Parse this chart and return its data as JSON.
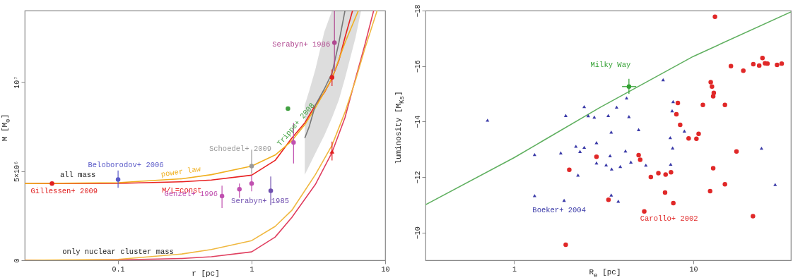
{
  "chart_data": [
    {
      "type": "line",
      "xlabel": "r [pc]",
      "ylabel": "M [M$_{⊙}$]",
      "log": "x",
      "xlim": [
        0.02,
        10
      ],
      "xticks": [
        0.1,
        1,
        10
      ],
      "ylim": [
        0,
        14000000
      ],
      "yticks": [
        0,
        {
          "value": 5000000,
          "label": "5×10⁶"
        },
        {
          "value": 10000000,
          "label": "10⁷"
        }
      ],
      "annotations": [
        {
          "text": "all mass",
          "x": 0.05,
          "y": 4300000
        },
        {
          "text": "only nuclear cluster mass",
          "x": 0.1,
          "y": 0
        }
      ],
      "series": [
        {
          "name": "M/L=const",
          "color": "#e82020",
          "x": [
            0.02,
            0.1,
            0.3,
            0.5,
            1,
            1.5,
            2,
            2.5,
            3,
            3.5,
            4,
            4.5,
            5,
            5.7
          ],
          "values": [
            4300000,
            4310000,
            4400000,
            4500000,
            4770000,
            5600000,
            6850000,
            7700000,
            8700000,
            9400000,
            10200000,
            11200000,
            12500000,
            14000000
          ]
        },
        {
          "name": "power law",
          "color": "#f0b020",
          "x": [
            0.02,
            0.1,
            0.3,
            0.5,
            1,
            1.5,
            2,
            2.5,
            3,
            4,
            5,
            6.3
          ],
          "values": [
            4300000,
            4350000,
            4570000,
            4800000,
            5280000,
            5900000,
            6700000,
            7600000,
            8550000,
            10200000,
            12200000,
            14000000
          ]
        },
        {
          "color": "#777777",
          "x": [
            2.5,
            2.7,
            3,
            3.5,
            4,
            4.5,
            5,
            5.5,
            6,
            6.6
          ],
          "values": [
            6850000,
            7500000,
            8700000,
            9600000,
            10500000,
            12200000,
            14000000,
            null,
            null,
            null
          ],
          "lower": [
            4800000,
            5300000,
            6000000,
            7000000,
            8000000,
            9000000,
            10200000,
            11400000,
            12500000,
            14000000
          ],
          "upper": [
            8700000,
            9500000,
            10700000,
            12800000,
            14000000,
            14000000,
            14000000,
            14000000,
            14000000,
            14000000
          ]
        },
        {
          "color": "#e04060",
          "x": [
            0.02,
            0.1,
            0.3,
            0.5,
            1,
            1.5,
            2,
            3,
            4,
            5,
            6,
            7,
            8.2
          ],
          "values": [
            0,
            20000,
            100000,
            200000,
            470000,
            1300000,
            2400000,
            4250000,
            6050000,
            8000000,
            10200000,
            12000000,
            14000000
          ]
        },
        {
          "color": "#f0b840",
          "x": [
            0.02,
            0.1,
            0.3,
            0.5,
            1,
            1.5,
            2,
            3,
            4,
            5,
            6,
            7,
            8.7
          ],
          "values": [
            0,
            50000,
            350000,
            600000,
            1100000,
            1900000,
            2800000,
            4800000,
            6450000,
            8300000,
            10100000,
            11800000,
            14000000
          ]
        },
        {
          "name": "Gillessen+ 2009",
          "type": "scatter",
          "marker": "circle",
          "color": "#e02020",
          "x": [
            0.032
          ],
          "values": [
            4300000
          ]
        },
        {
          "name": "Beloborodov+ 2006",
          "type": "scatter",
          "marker": "circle",
          "color": "#5a5ac8",
          "x": [
            0.1
          ],
          "values": [
            4530000
          ],
          "errors": [
            [
              4060000,
              5030000
            ]
          ]
        },
        {
          "name": "Genzel+ 1996",
          "type": "scatter",
          "marker": "circle",
          "color": "#c050b0",
          "x": [
            0.6,
            0.81,
            1.0,
            2.06
          ],
          "values": [
            3600000,
            3980000,
            4300000,
            6600000
          ],
          "errors": [
            [
              2930000,
              4180000
            ],
            [
              3500000,
              4300000
            ],
            [
              3870000,
              4770000
            ],
            [
              5430000,
              7700000
            ]
          ]
        },
        {
          "name": "Serabyn+ 1985",
          "type": "scatter",
          "marker": "circle",
          "color": "#7050b0",
          "x": [
            1.39
          ],
          "values": [
            3900000
          ],
          "errors": [
            [
              3080000,
              4700000
            ]
          ]
        },
        {
          "name": "Schoedel+ 2009",
          "type": "scatter",
          "marker": "circle",
          "color": "#999999",
          "x": [
            1.0
          ],
          "values": [
            5280000
          ],
          "errors": [
            [
              4840000,
              6200000
            ]
          ]
        },
        {
          "name": "Trippe+ 2008",
          "type": "scatter",
          "marker": "circle",
          "color": "#40a040",
          "x": [
            1.87
          ],
          "values": [
            8500000
          ]
        },
        {
          "name": "Serabyn+ 1986",
          "type": "scatter",
          "marker": "circle",
          "color": "#b04890",
          "x": [
            4.17
          ],
          "values": [
            12200000
          ],
          "errors": [
            [
              10600000,
              14000000
            ]
          ]
        },
        {
          "type": "scatter",
          "marker": "circle",
          "color": "#e02020",
          "x": [
            4.0
          ],
          "values": [
            10250000
          ],
          "errors": [
            [
              9770000,
              10700000
            ]
          ]
        },
        {
          "type": "scatter",
          "marker": "triangle",
          "color": "#e02020",
          "x": [
            4.0
          ],
          "values": [
            6100000
          ],
          "errors": [
            [
              5600000,
              6650000
            ]
          ]
        }
      ]
    },
    {
      "type": "scatter",
      "xlabel": "R$_{e}$ [pc]",
      "ylabel": "luminosity [M$_{Ks}$]",
      "log": "x",
      "xlim": [
        0.32,
        35
      ],
      "xticks": [
        1,
        10
      ],
      "ylim": [
        -9,
        -18
      ],
      "yticks": [
        -10,
        -12,
        -14,
        -16,
        -18
      ],
      "series": [
        {
          "type": "line",
          "color": "#60b060",
          "x": [
            0.32,
            1,
            3,
            10,
            35
          ],
          "values": [
            -11.0,
            -12.7,
            -14.5,
            -16.35,
            -17.95
          ]
        },
        {
          "name": "Milky Way",
          "marker": "circle",
          "color": "#30a030",
          "x": [
            4.37
          ],
          "values": [
            -15.26
          ],
          "errors": [
            [
              -15.54,
              -15.0
            ]
          ],
          "xerrors": [
            [
              4.0,
              4.8
            ]
          ]
        },
        {
          "name": "Boeker+ 2004",
          "marker": "triangle",
          "color": "#3a3aa8",
          "x": [
            0.71,
            1.3,
            1.3,
            1.82,
            1.9,
            1.94,
            2.21,
            2.27,
            2.33,
            2.46,
            2.46,
            2.59,
            2.8,
            2.88,
            2.88,
            3.35,
            3.73,
            3.48,
            3.43,
            3.26,
            3.5,
            3.91,
            3.48,
            3.81,
            4.18,
            4.24,
            4.37,
            4.48,
            4.95,
            5.43,
            6.78,
            7.71,
            7.61,
            7.43,
            7.66,
            7.47,
            8.91,
            24.0,
            28.6
          ],
          "values": [
            -14.05,
            -12.81,
            -11.33,
            -12.87,
            -11.16,
            -14.22,
            -13.11,
            -12.07,
            -12.92,
            -14.54,
            -13.07,
            -14.21,
            -14.16,
            -13.24,
            -12.51,
            -14.22,
            -14.52,
            -13.62,
            -12.77,
            -12.44,
            -12.29,
            -12.38,
            -11.35,
            -11.13,
            -12.94,
            -14.85,
            -14.18,
            -12.54,
            -13.71,
            -12.43,
            -15.51,
            -14.72,
            -14.39,
            -13.42,
            -13.05,
            -12.46,
            -13.66,
            -13.04,
            -11.73
          ]
        },
        {
          "name": "Carollo+ 2002",
          "marker": "circle",
          "color": "#e02828",
          "x": [
            2.03,
            1.94,
            2.88,
            3.36,
            4.95,
            5.05,
            5.32,
            5.79,
            6.38,
            7.0,
            7.5,
            6.95,
            7.73,
            8.19,
            8.04,
            8.44,
            9.41,
            10.4,
            10.7,
            11.3,
            12.5,
            12.7,
            13.0,
            12.9,
            13.2,
            12.9,
            12.4,
            15.0,
            15.0,
            16.2,
            17.4,
            19.0,
            21.5,
            21.6,
            23.3,
            24.3,
            25.1,
            25.9,
            29.3,
            31.1
          ],
          "values": [
            -12.26,
            -9.56,
            -12.73,
            -11.18,
            -12.79,
            -12.62,
            -10.76,
            -12.0,
            -12.14,
            -12.09,
            -12.17,
            -11.44,
            -11.06,
            -14.67,
            -14.26,
            -13.88,
            -13.39,
            -13.38,
            -13.56,
            -14.6,
            -15.42,
            -15.26,
            -15.03,
            -14.91,
            -17.78,
            -12.32,
            -11.49,
            -14.6,
            -11.74,
            -16.0,
            -12.92,
            -15.83,
            -10.59,
            -16.07,
            -16.02,
            -16.29,
            -16.1,
            -16.09,
            -16.04,
            -16.09
          ]
        }
      ]
    }
  ]
}
